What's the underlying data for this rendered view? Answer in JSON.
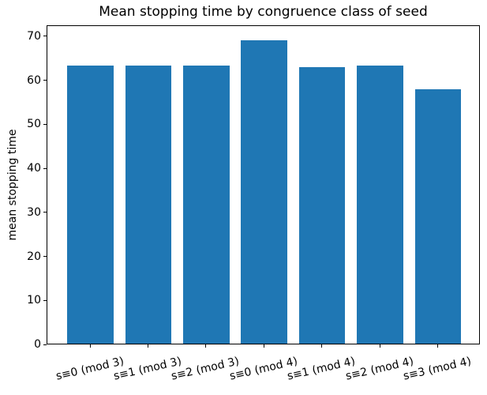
{
  "chart_data": {
    "type": "bar",
    "title": "Mean stopping time by congruence class of seed",
    "xlabel": "",
    "ylabel": "mean stopping time",
    "categories": [
      "s≡0 (mod 3)",
      "s≡1 (mod 3)",
      "s≡2 (mod 3)",
      "s≡0 (mod 4)",
      "s≡1 (mod 4)",
      "s≡2 (mod 4)",
      "s≡3 (mod 4)"
    ],
    "values": [
      63.2,
      63.2,
      63.1,
      68.9,
      62.8,
      63.1,
      57.8
    ],
    "yticks": [
      0,
      10,
      20,
      30,
      40,
      50,
      60,
      70
    ],
    "ylim": [
      0,
      72.5
    ],
    "bar_color": "#1f77b4",
    "spine_color": "#000000",
    "background_color": "#ffffff",
    "xtick_rotation_deg": 13,
    "grid": false,
    "legend": false
  }
}
